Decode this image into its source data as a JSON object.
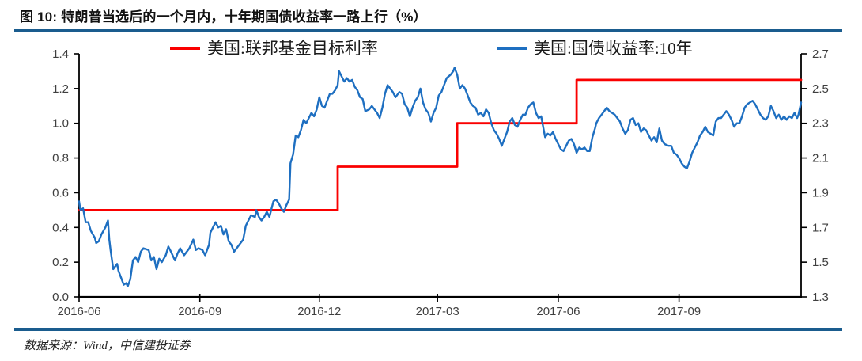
{
  "header": {
    "title": "图 10: 特朗普当选后的一个月内，十年期国债收益率一路上行（%）"
  },
  "footer": {
    "source": "数据来源：Wind，中信建投证券"
  },
  "colors": {
    "divider": "#1A5C8E",
    "axis_line": "#000000",
    "axis_text": "#3F3F3F",
    "red_series": "#FA0000",
    "blue_series": "#1E6FC1"
  },
  "chart_data": {
    "type": "line",
    "title": "特朗普当选后的一个月内，十年期国债收益率一路上行（%）",
    "legend_position": "top",
    "grid": false,
    "x_axis": {
      "tick_labels": [
        "2016-06",
        "2016-09",
        "2016-12",
        "2017-03",
        "2017-06",
        "2017-09"
      ],
      "tick_days": [
        0,
        92,
        183,
        273,
        365,
        457
      ],
      "domain_days": [
        0,
        550
      ]
    },
    "left_axis": {
      "ticks": [
        0.0,
        0.2,
        0.4,
        0.6,
        0.8,
        1.0,
        1.2,
        1.4
      ],
      "tick_labels": [
        "0.0",
        "0.2",
        "0.4",
        "0.6",
        "0.8",
        "1.0",
        "1.2",
        "1.4"
      ],
      "range": [
        0.0,
        1.4
      ]
    },
    "right_axis": {
      "ticks": [
        1.3,
        1.5,
        1.7,
        1.9,
        2.1,
        2.3,
        2.5,
        2.7
      ],
      "tick_labels": [
        "1.3",
        "1.5",
        "1.7",
        "1.9",
        "2.1",
        "2.3",
        "2.5",
        "2.7"
      ],
      "range": [
        1.3,
        2.7
      ]
    },
    "series": [
      {
        "name": "美国:联邦基金目标利率",
        "color": "#FA0000",
        "axis": "left",
        "style": "step",
        "width": 2.8,
        "points": [
          [
            0,
            0.5
          ],
          [
            197,
            0.5
          ],
          [
            197,
            0.75
          ],
          [
            288,
            0.75
          ],
          [
            288,
            1.0
          ],
          [
            379,
            1.0
          ],
          [
            379,
            1.25
          ],
          [
            550,
            1.25
          ]
        ]
      },
      {
        "name": "美国:国债收益率:10年",
        "color": "#1E6FC1",
        "axis": "right",
        "style": "line",
        "width": 2.4,
        "points": [
          [
            0,
            1.85
          ],
          [
            1,
            1.8
          ],
          [
            3,
            1.81
          ],
          [
            5,
            1.73
          ],
          [
            7,
            1.73
          ],
          [
            9,
            1.68
          ],
          [
            12,
            1.64
          ],
          [
            13,
            1.61
          ],
          [
            15,
            1.62
          ],
          [
            17,
            1.66
          ],
          [
            20,
            1.7
          ],
          [
            22,
            1.74
          ],
          [
            23,
            1.63
          ],
          [
            24,
            1.57
          ],
          [
            26,
            1.46
          ],
          [
            27,
            1.47
          ],
          [
            29,
            1.49
          ],
          [
            30,
            1.45
          ],
          [
            33,
            1.39
          ],
          [
            34,
            1.37
          ],
          [
            36,
            1.38
          ],
          [
            37,
            1.36
          ],
          [
            39,
            1.4
          ],
          [
            41,
            1.51
          ],
          [
            43,
            1.53
          ],
          [
            45,
            1.5
          ],
          [
            47,
            1.56
          ],
          [
            49,
            1.58
          ],
          [
            53,
            1.57
          ],
          [
            55,
            1.51
          ],
          [
            57,
            1.53
          ],
          [
            59,
            1.46
          ],
          [
            61,
            1.52
          ],
          [
            63,
            1.5
          ],
          [
            66,
            1.54
          ],
          [
            68,
            1.59
          ],
          [
            70,
            1.56
          ],
          [
            73,
            1.51
          ],
          [
            75,
            1.55
          ],
          [
            77,
            1.58
          ],
          [
            80,
            1.54
          ],
          [
            82,
            1.56
          ],
          [
            84,
            1.58
          ],
          [
            87,
            1.63
          ],
          [
            89,
            1.57
          ],
          [
            91,
            1.58
          ],
          [
            94,
            1.57
          ],
          [
            96,
            1.54
          ],
          [
            99,
            1.6
          ],
          [
            100,
            1.67
          ],
          [
            102,
            1.7
          ],
          [
            104,
            1.73
          ],
          [
            106,
            1.7
          ],
          [
            108,
            1.71
          ],
          [
            110,
            1.66
          ],
          [
            112,
            1.69
          ],
          [
            114,
            1.62
          ],
          [
            116,
            1.6
          ],
          [
            118,
            1.56
          ],
          [
            120,
            1.58
          ],
          [
            122,
            1.6
          ],
          [
            125,
            1.63
          ],
          [
            127,
            1.71
          ],
          [
            129,
            1.74
          ],
          [
            131,
            1.77
          ],
          [
            134,
            1.76
          ],
          [
            135,
            1.8
          ],
          [
            137,
            1.76
          ],
          [
            139,
            1.74
          ],
          [
            141,
            1.76
          ],
          [
            143,
            1.79
          ],
          [
            145,
            1.76
          ],
          [
            147,
            1.82
          ],
          [
            148,
            1.85
          ],
          [
            150,
            1.86
          ],
          [
            152,
            1.84
          ],
          [
            154,
            1.81
          ],
          [
            156,
            1.79
          ],
          [
            158,
            1.83
          ],
          [
            160,
            1.86
          ],
          [
            161,
            2.07
          ],
          [
            163,
            2.12
          ],
          [
            165,
            2.23
          ],
          [
            167,
            2.22
          ],
          [
            169,
            2.26
          ],
          [
            171,
            2.32
          ],
          [
            173,
            2.3
          ],
          [
            175,
            2.33
          ],
          [
            177,
            2.36
          ],
          [
            179,
            2.34
          ],
          [
            181,
            2.38
          ],
          [
            183,
            2.45
          ],
          [
            185,
            2.4
          ],
          [
            187,
            2.39
          ],
          [
            189,
            2.43
          ],
          [
            191,
            2.47
          ],
          [
            193,
            2.47
          ],
          [
            195,
            2.49
          ],
          [
            197,
            2.52
          ],
          [
            198,
            2.6
          ],
          [
            200,
            2.57
          ],
          [
            202,
            2.54
          ],
          [
            204,
            2.56
          ],
          [
            206,
            2.54
          ],
          [
            208,
            2.55
          ],
          [
            210,
            2.51
          ],
          [
            212,
            2.49
          ],
          [
            214,
            2.45
          ],
          [
            216,
            2.44
          ],
          [
            218,
            2.37
          ],
          [
            221,
            2.38
          ],
          [
            223,
            2.4
          ],
          [
            225,
            2.38
          ],
          [
            227,
            2.36
          ],
          [
            229,
            2.33
          ],
          [
            231,
            2.39
          ],
          [
            233,
            2.47
          ],
          [
            235,
            2.52
          ],
          [
            237,
            2.5
          ],
          [
            239,
            2.48
          ],
          [
            241,
            2.45
          ],
          [
            244,
            2.48
          ],
          [
            246,
            2.47
          ],
          [
            248,
            2.41
          ],
          [
            250,
            2.39
          ],
          [
            252,
            2.34
          ],
          [
            254,
            2.39
          ],
          [
            256,
            2.43
          ],
          [
            258,
            2.45
          ],
          [
            260,
            2.5
          ],
          [
            262,
            2.42
          ],
          [
            264,
            2.38
          ],
          [
            266,
            2.36
          ],
          [
            268,
            2.31
          ],
          [
            270,
            2.36
          ],
          [
            272,
            2.39
          ],
          [
            274,
            2.46
          ],
          [
            276,
            2.48
          ],
          [
            278,
            2.52
          ],
          [
            280,
            2.56
          ],
          [
            283,
            2.58
          ],
          [
            285,
            2.6
          ],
          [
            286,
            2.62
          ],
          [
            288,
            2.58
          ],
          [
            290,
            2.5
          ],
          [
            292,
            2.52
          ],
          [
            294,
            2.5
          ],
          [
            296,
            2.46
          ],
          [
            298,
            2.42
          ],
          [
            300,
            2.4
          ],
          [
            302,
            2.39
          ],
          [
            304,
            2.35
          ],
          [
            306,
            2.36
          ],
          [
            308,
            2.34
          ],
          [
            310,
            2.38
          ],
          [
            312,
            2.36
          ],
          [
            314,
            2.3
          ],
          [
            316,
            2.26
          ],
          [
            318,
            2.24
          ],
          [
            320,
            2.21
          ],
          [
            322,
            2.17
          ],
          [
            324,
            2.21
          ],
          [
            326,
            2.25
          ],
          [
            328,
            2.31
          ],
          [
            330,
            2.33
          ],
          [
            332,
            2.29
          ],
          [
            334,
            2.28
          ],
          [
            336,
            2.32
          ],
          [
            338,
            2.35
          ],
          [
            340,
            2.35
          ],
          [
            342,
            2.39
          ],
          [
            344,
            2.41
          ],
          [
            346,
            2.42
          ],
          [
            348,
            2.36
          ],
          [
            350,
            2.33
          ],
          [
            352,
            2.34
          ],
          [
            354,
            2.26
          ],
          [
            355,
            2.22
          ],
          [
            357,
            2.24
          ],
          [
            359,
            2.23
          ],
          [
            361,
            2.25
          ],
          [
            363,
            2.21
          ],
          [
            365,
            2.18
          ],
          [
            367,
            2.15
          ],
          [
            369,
            2.14
          ],
          [
            371,
            2.17
          ],
          [
            373,
            2.2
          ],
          [
            375,
            2.21
          ],
          [
            377,
            2.18
          ],
          [
            379,
            2.13
          ],
          [
            381,
            2.16
          ],
          [
            383,
            2.15
          ],
          [
            385,
            2.16
          ],
          [
            387,
            2.14
          ],
          [
            389,
            2.14
          ],
          [
            391,
            2.22
          ],
          [
            393,
            2.27
          ],
          [
            394,
            2.3
          ],
          [
            396,
            2.33
          ],
          [
            398,
            2.35
          ],
          [
            400,
            2.37
          ],
          [
            402,
            2.39
          ],
          [
            404,
            2.37
          ],
          [
            406,
            2.36
          ],
          [
            408,
            2.35
          ],
          [
            410,
            2.33
          ],
          [
            412,
            2.31
          ],
          [
            414,
            2.27
          ],
          [
            416,
            2.24
          ],
          [
            418,
            2.26
          ],
          [
            420,
            2.32
          ],
          [
            422,
            2.33
          ],
          [
            424,
            2.29
          ],
          [
            426,
            2.3
          ],
          [
            428,
            2.25
          ],
          [
            430,
            2.27
          ],
          [
            432,
            2.26
          ],
          [
            434,
            2.23
          ],
          [
            436,
            2.2
          ],
          [
            438,
            2.22
          ],
          [
            440,
            2.19
          ],
          [
            442,
            2.27
          ],
          [
            444,
            2.2
          ],
          [
            446,
            2.18
          ],
          [
            449,
            2.17
          ],
          [
            451,
            2.17
          ],
          [
            453,
            2.13
          ],
          [
            455,
            2.12
          ],
          [
            457,
            2.1
          ],
          [
            459,
            2.07
          ],
          [
            461,
            2.05
          ],
          [
            463,
            2.04
          ],
          [
            465,
            2.08
          ],
          [
            467,
            2.13
          ],
          [
            469,
            2.16
          ],
          [
            471,
            2.19
          ],
          [
            473,
            2.23
          ],
          [
            475,
            2.25
          ],
          [
            477,
            2.28
          ],
          [
            479,
            2.25
          ],
          [
            481,
            2.24
          ],
          [
            483,
            2.23
          ],
          [
            485,
            2.31
          ],
          [
            487,
            2.33
          ],
          [
            489,
            2.33
          ],
          [
            491,
            2.35
          ],
          [
            493,
            2.37
          ],
          [
            495,
            2.35
          ],
          [
            497,
            2.32
          ],
          [
            499,
            2.28
          ],
          [
            501,
            2.3
          ],
          [
            503,
            2.3
          ],
          [
            505,
            2.34
          ],
          [
            507,
            2.39
          ],
          [
            509,
            2.41
          ],
          [
            511,
            2.42
          ],
          [
            513,
            2.43
          ],
          [
            515,
            2.41
          ],
          [
            517,
            2.38
          ],
          [
            519,
            2.35
          ],
          [
            521,
            2.33
          ],
          [
            523,
            2.32
          ],
          [
            525,
            2.34
          ],
          [
            527,
            2.4
          ],
          [
            529,
            2.37
          ],
          [
            531,
            2.33
          ],
          [
            533,
            2.35
          ],
          [
            535,
            2.32
          ],
          [
            537,
            2.34
          ],
          [
            539,
            2.32
          ],
          [
            541,
            2.34
          ],
          [
            543,
            2.33
          ],
          [
            545,
            2.36
          ],
          [
            547,
            2.33
          ],
          [
            548,
            2.35
          ],
          [
            550,
            2.42
          ]
        ]
      }
    ]
  }
}
